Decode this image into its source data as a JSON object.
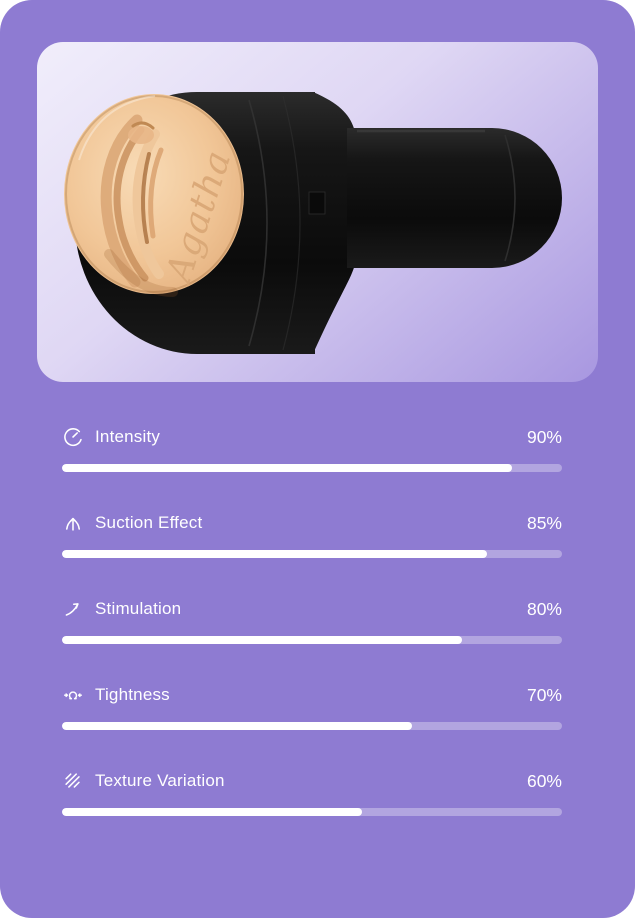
{
  "product_panel": {
    "signature": "Agatha"
  },
  "stats": [
    {
      "icon": "gauge-icon",
      "label": "Intensity",
      "value": "90%",
      "percent": 90
    },
    {
      "icon": "suction-icon",
      "label": "Suction Effect",
      "value": "85%",
      "percent": 85
    },
    {
      "icon": "stimulation-icon",
      "label": "Stimulation",
      "value": "80%",
      "percent": 80
    },
    {
      "icon": "tightness-icon",
      "label": "Tightness",
      "value": "70%",
      "percent": 70
    },
    {
      "icon": "texture-icon",
      "label": "Texture Variation",
      "value": "60%",
      "percent": 60
    }
  ],
  "colors": {
    "card_background": "#8E7BD2",
    "panel_gradient_top": "#F1EEFB",
    "panel_gradient_bottom": "#A897E0",
    "text": "#FFFFFF",
    "bar_fill": "#FFFFFF",
    "bar_track": "rgba(255,255,255,0.32)",
    "device_black": "#131313",
    "sleeve_flesh": "#F2C79C",
    "signature_tone": "#DAA877"
  }
}
